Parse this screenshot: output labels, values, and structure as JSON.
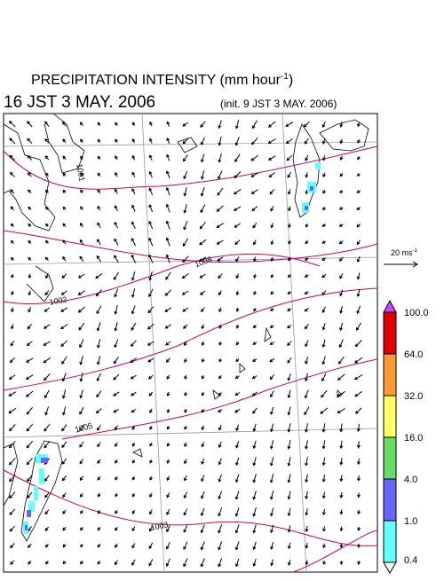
{
  "header": {
    "title": "PRECIPITATION INTENSITY (mm hour",
    "title_exponent": "-1",
    "title_close": ")",
    "valid_time": "16 JST 3 MAY. 2006",
    "init_time": "(init. 9 JST 3 MAY. 2006)"
  },
  "wind_scale": {
    "label": "20 ms",
    "exponent": "-1"
  },
  "isobars": [
    {
      "label": "1001"
    },
    {
      "label": "1008"
    },
    {
      "label": "1002"
    },
    {
      "label": "1005"
    },
    {
      "label": "1003"
    }
  ],
  "colorbar": {
    "levels": [
      {
        "value": 100,
        "label": "100.0"
      },
      {
        "value": 64,
        "label": "64.0"
      },
      {
        "value": 32,
        "label": "32.0"
      },
      {
        "value": 16,
        "label": "16.0"
      },
      {
        "value": 4,
        "label": "4.0"
      },
      {
        "value": 1,
        "label": "1.0"
      },
      {
        "value": 0.4,
        "label": "0.4"
      }
    ],
    "colors": [
      "#e00000",
      "#ff9933",
      "#ffff66",
      "#66dd66",
      "#6666ff",
      "#66ffff"
    ],
    "over_color": "#cc44ff",
    "under_color": "#ffffff"
  }
}
